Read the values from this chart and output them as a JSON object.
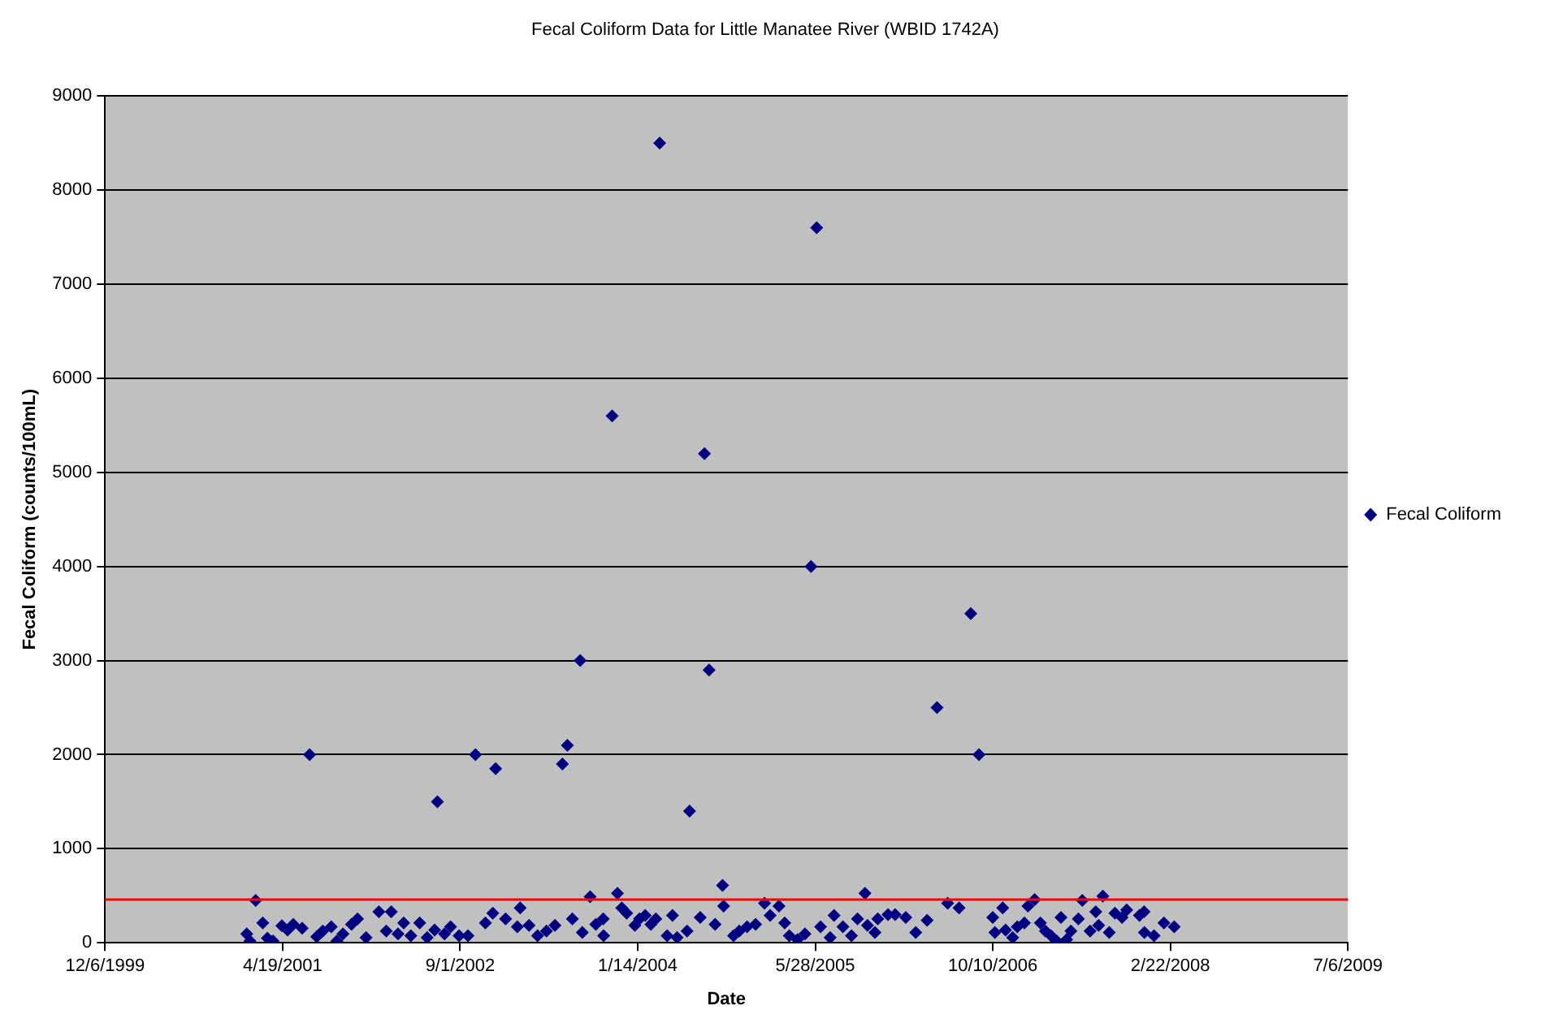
{
  "chart_data": {
    "type": "scatter",
    "title": "Fecal Coliform Data for Little Manatee River (WBID 1742A)",
    "xlabel": "Date",
    "ylabel": "Fecal Coliform (counts/100mL)",
    "xlim": [
      "1999-12-06",
      "2009-07-06"
    ],
    "xticks": [
      {
        "value": "1999-12-06",
        "label": "12/6/1999"
      },
      {
        "value": "2001-04-19",
        "label": "4/19/2001"
      },
      {
        "value": "2002-09-01",
        "label": "9/1/2002"
      },
      {
        "value": "2004-01-14",
        "label": "1/14/2004"
      },
      {
        "value": "2005-05-28",
        "label": "5/28/2005"
      },
      {
        "value": "2006-10-10",
        "label": "10/10/2006"
      },
      {
        "value": "2008-02-22",
        "label": "2/22/2008"
      },
      {
        "value": "2009-07-06",
        "label": "7/6/2009"
      }
    ],
    "ylim": [
      0,
      9000
    ],
    "yticks": [
      0,
      1000,
      2000,
      3000,
      4000,
      5000,
      6000,
      7000,
      8000,
      9000
    ],
    "grid": "y",
    "legend": "right",
    "marker": "diamond",
    "ref_lines": [
      {
        "axis": "y",
        "value": 460,
        "color": "#ff0000"
      }
    ],
    "series": [
      {
        "name": "Fecal Coliform",
        "color": "#000080",
        "x": [
          "2001-01-08",
          "2001-01-17",
          "2001-02-02",
          "2001-02-22",
          "2001-03-07",
          "2001-03-23",
          "2001-04-17",
          "2001-05-03",
          "2001-05-19",
          "2001-06-13",
          "2001-07-04",
          "2001-07-24",
          "2001-08-10",
          "2001-09-03",
          "2001-09-19",
          "2001-10-06",
          "2001-10-30",
          "2001-11-16",
          "2001-12-10",
          "2002-01-15",
          "2002-02-05",
          "2002-02-19",
          "2002-03-10",
          "2002-03-26",
          "2002-04-15",
          "2002-05-10",
          "2002-05-31",
          "2002-06-21",
          "2002-06-29",
          "2002-07-19",
          "2002-08-05",
          "2002-08-29",
          "2002-09-23",
          "2002-10-14",
          "2002-11-11",
          "2002-12-02",
          "2002-12-10",
          "2003-01-07",
          "2003-02-09",
          "2003-02-17",
          "2003-03-14",
          "2003-04-07",
          "2003-05-02",
          "2003-05-26",
          "2003-06-16",
          "2003-06-30",
          "2003-07-14",
          "2003-08-05",
          "2003-08-11",
          "2003-09-02",
          "2003-09-18",
          "2003-10-09",
          "2003-10-10",
          "2003-11-03",
          "2003-11-18",
          "2003-11-30",
          "2003-12-14",
          "2004-01-06",
          "2004-01-19",
          "2004-02-04",
          "2004-02-20",
          "2004-03-05",
          "2004-03-16",
          "2004-04-06",
          "2004-04-21",
          "2004-05-04",
          "2004-06-01",
          "2004-06-08",
          "2004-07-08",
          "2004-07-20",
          "2004-08-02",
          "2004-08-19",
          "2004-09-09",
          "2004-09-12",
          "2004-10-10",
          "2004-10-26",
          "2004-11-17",
          "2004-12-11",
          "2005-01-05",
          "2005-01-21",
          "2005-02-15",
          "2005-03-03",
          "2005-03-16",
          "2005-04-08",
          "2005-04-29",
          "2005-05-16",
          "2005-06-01",
          "2005-06-12",
          "2005-07-09",
          "2005-07-20",
          "2005-08-14",
          "2005-09-07",
          "2005-09-24",
          "2005-10-15",
          "2005-10-22",
          "2005-11-12",
          "2005-11-20",
          "2005-12-19",
          "2006-01-08",
          "2006-02-07",
          "2006-03-07",
          "2006-04-08",
          "2006-05-06",
          "2006-06-05",
          "2006-07-07",
          "2006-08-09",
          "2006-09-01",
          "2006-10-10",
          "2006-10-16",
          "2006-11-07",
          "2006-11-15",
          "2006-12-05",
          "2006-12-18",
          "2007-01-07",
          "2007-01-17",
          "2007-02-05",
          "2007-02-21",
          "2007-03-07",
          "2007-03-23",
          "2007-04-08",
          "2007-04-20",
          "2007-05-06",
          "2007-05-18",
          "2007-06-08",
          "2007-06-19",
          "2007-07-11",
          "2007-07-27",
          "2007-08-04",
          "2007-08-16",
          "2007-09-03",
          "2007-09-19",
          "2007-10-09",
          "2007-10-22",
          "2007-11-27",
          "2007-12-10",
          "2007-12-11",
          "2008-01-07",
          "2008-02-04",
          "2008-03-04"
        ],
        "values": [
          95,
          20,
          450,
          210,
          50,
          20,
          180,
          135,
          195,
          155,
          2000,
          65,
          125,
          170,
          20,
          95,
          195,
          255,
          55,
          330,
          125,
          330,
          95,
          210,
          75,
          210,
          55,
          135,
          1500,
          95,
          170,
          75,
          75,
          2000,
          210,
          315,
          1850,
          255,
          170,
          370,
          185,
          75,
          125,
          185,
          1900,
          2100,
          255,
          3000,
          110,
          490,
          195,
          255,
          75,
          5600,
          525,
          370,
          315,
          185,
          255,
          290,
          195,
          255,
          8500,
          75,
          290,
          55,
          125,
          1400,
          270,
          5200,
          2900,
          195,
          610,
          390,
          75,
          125,
          170,
          195,
          420,
          290,
          390,
          210,
          75,
          35,
          95,
          4000,
          7600,
          170,
          55,
          290,
          170,
          75,
          255,
          525,
          185,
          110,
          255,
          300,
          300,
          270,
          110,
          240,
          2500,
          420,
          370,
          3500,
          2000,
          270,
          110,
          370,
          135,
          55,
          170,
          210,
          390,
          460,
          210,
          125,
          75,
          20,
          270,
          35,
          125,
          255,
          450,
          125,
          330,
          185,
          495,
          110,
          315,
          270,
          350,
          290,
          330,
          110,
          75,
          210,
          170
        ]
      }
    ]
  }
}
